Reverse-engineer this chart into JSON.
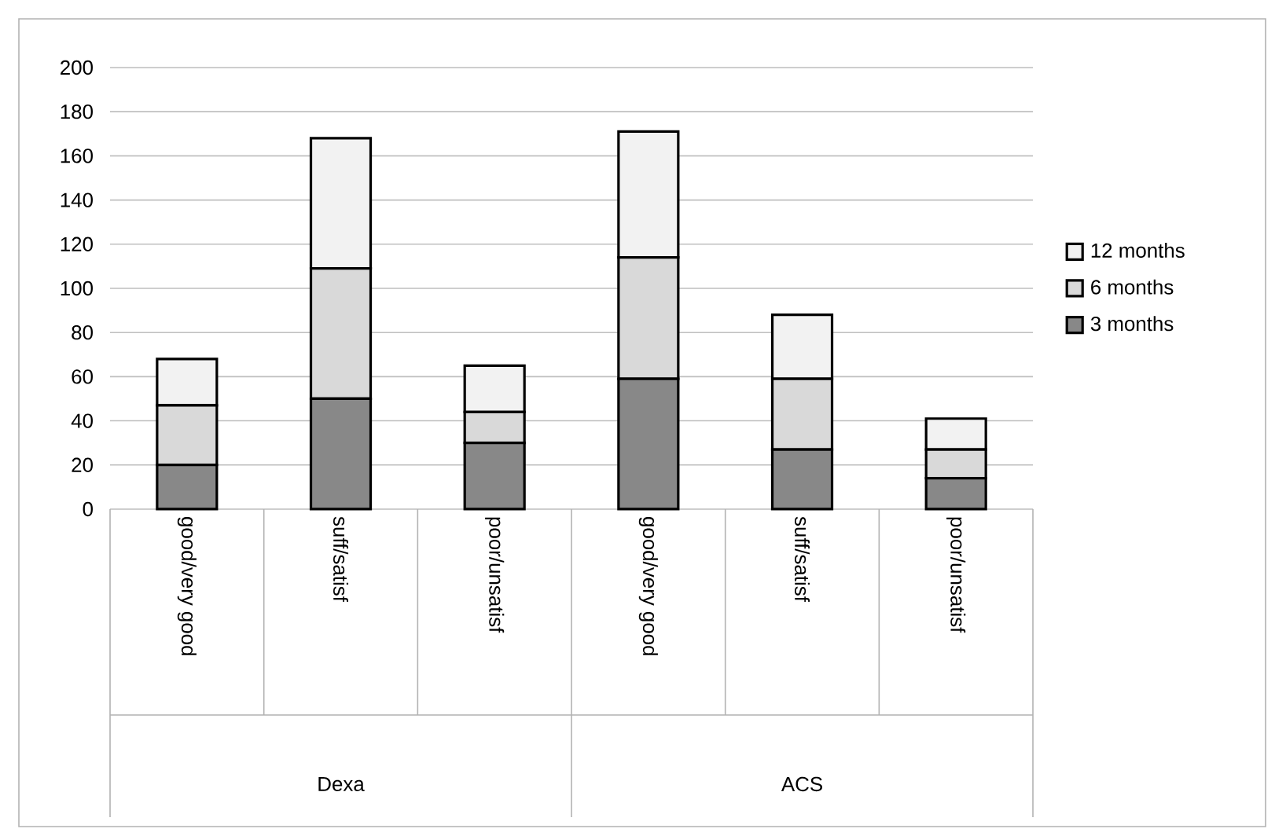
{
  "chart_data": {
    "type": "bar",
    "stacked": true,
    "categories": [
      "good/very good",
      "suff/satisf",
      "poor/unsatisf",
      "good/very good",
      "suff/satisf",
      "poor/unsatisf"
    ],
    "series": [
      {
        "name": "3 months",
        "color": "#888888",
        "values": [
          20,
          50,
          30,
          59,
          27,
          14
        ]
      },
      {
        "name": "6 months",
        "color": "#d9d9d9",
        "values": [
          27,
          59,
          14,
          55,
          32,
          13
        ]
      },
      {
        "name": "12 months",
        "color": "#f2f2f2",
        "values": [
          21,
          59,
          21,
          57,
          29,
          14
        ]
      }
    ],
    "ylim": [
      0,
      200
    ],
    "yticks": [
      0,
      20,
      40,
      60,
      80,
      100,
      120,
      140,
      160,
      180,
      200
    ],
    "grid": "y",
    "legend": "right",
    "annotations": [
      "Dexa",
      "ACS"
    ]
  }
}
